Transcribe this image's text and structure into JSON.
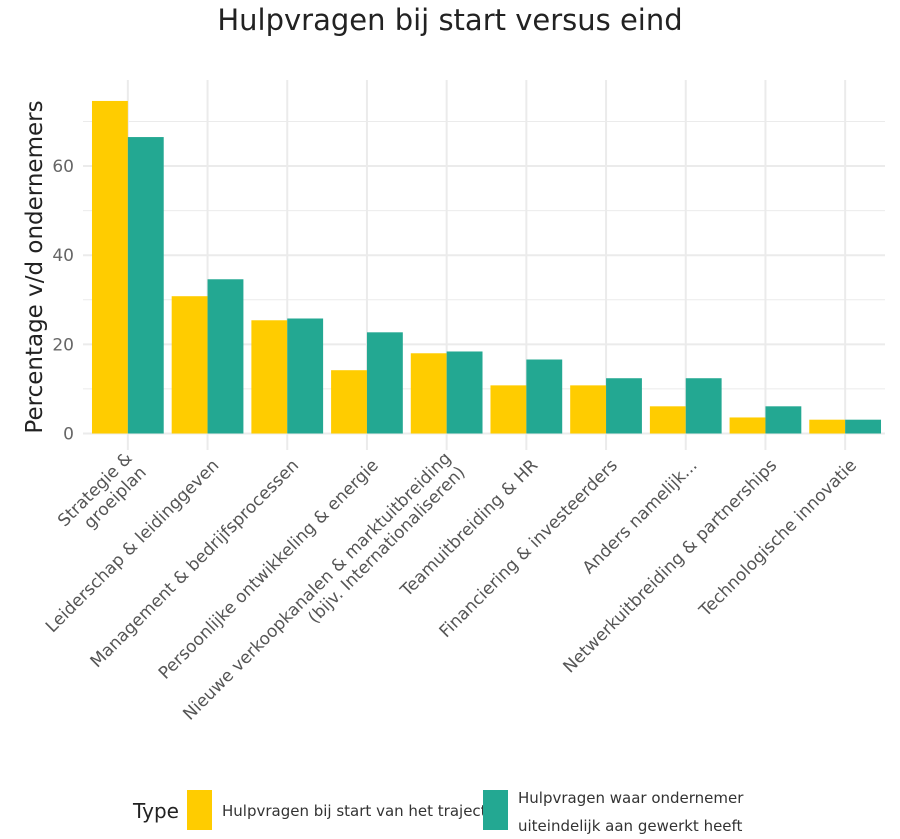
{
  "chart_data": {
    "type": "bar",
    "title": "Hulpvragen bij start versus eind",
    "xlabel": "",
    "ylabel": "Percentage v/d ondernemers",
    "ylim": [
      -3.7,
      79.3
    ],
    "yticks": [
      0,
      20,
      40,
      60
    ],
    "grid": true,
    "legend_placement": "bottom",
    "legend_title": "Type",
    "categories": [
      [
        "Strategie &",
        "groeiplan"
      ],
      [
        "Leiderschap & leidinggeven"
      ],
      [
        "Management & bedrijfsprocessen"
      ],
      [
        "Persoonlijke ontwikkeling & energie"
      ],
      [
        "Nieuwe verkoopkanalen & marktuitbreiding",
        "(bijv. Internationaliseren)"
      ],
      [
        "Teamuitbreiding & HR"
      ],
      [
        "Financiering & investeerders"
      ],
      [
        "Anders namelijk..."
      ],
      [
        "Netwerkuitbreiding & partnerships"
      ],
      [
        "Technologische innovatie"
      ]
    ],
    "series": [
      {
        "name": "Hulpvragen bij start van het traject",
        "name_lines": [
          "Hulpvragen bij start van het traject"
        ],
        "color": "#FFCC00",
        "values": [
          74.6,
          30.8,
          25.4,
          14.2,
          18.0,
          10.8,
          10.8,
          6.1,
          3.6,
          3.1
        ]
      },
      {
        "name": "Hulpvragen waar ondernemer uiteindelijk aan gewerkt heeft",
        "name_lines": [
          "Hulpvragen waar ondernemer",
          "uiteindelijk aan gewerkt heeft"
        ],
        "color": "#23A892",
        "values": [
          66.5,
          34.6,
          25.8,
          22.7,
          18.4,
          16.6,
          12.4,
          12.4,
          6.1,
          3.1
        ]
      }
    ]
  }
}
